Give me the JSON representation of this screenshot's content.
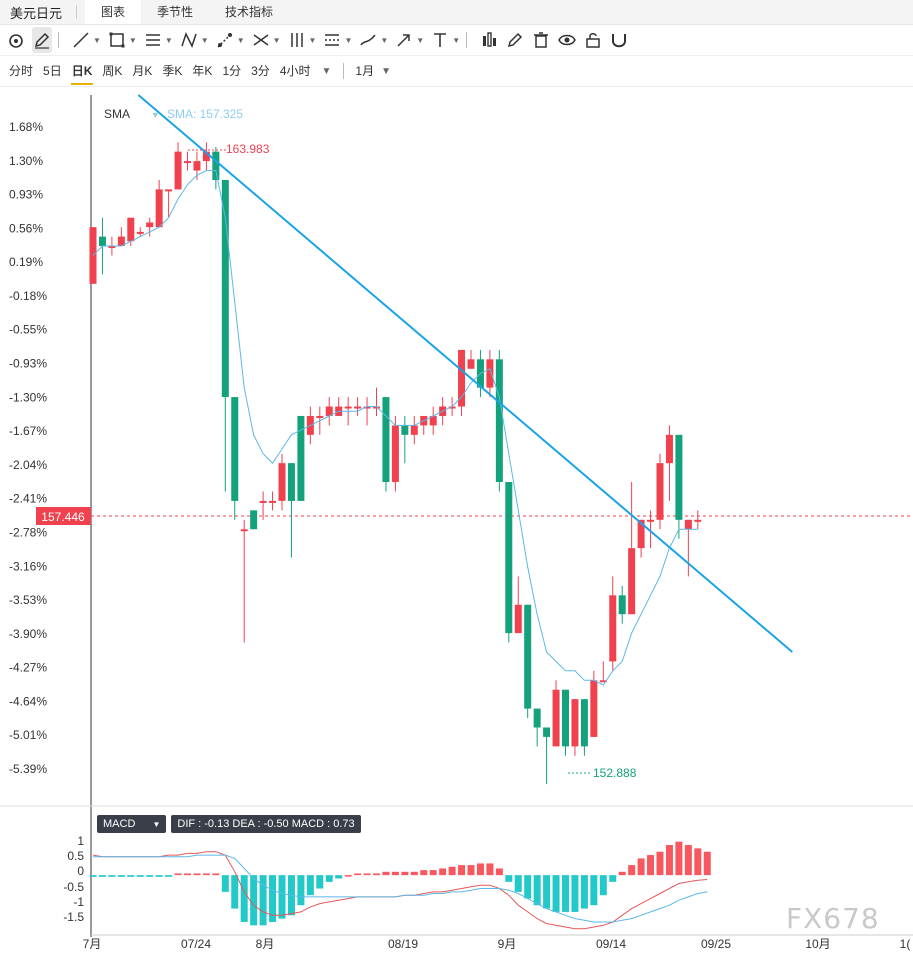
{
  "header": {
    "symbol": "美元日元",
    "tabs": [
      {
        "label": "图表",
        "active": true
      },
      {
        "label": "季节性",
        "active": false
      },
      {
        "label": "技术指标",
        "active": false
      }
    ]
  },
  "toolbar": {
    "icons": [
      "magnet-icon",
      "pencil-icon",
      "line-icon",
      "rectangle-icon",
      "parallel-lines-icon",
      "pattern-icon",
      "ruler-icon",
      "fork-icon",
      "pitchfork-icon",
      "fib-icon",
      "brush-icon",
      "arrow-icon",
      "text-icon",
      "bar-chart-icon",
      "edit-icon",
      "trash-icon",
      "eye-icon",
      "lock-icon",
      "magnet-u-icon"
    ]
  },
  "periods": {
    "items": [
      "分时",
      "5日",
      "日K",
      "周K",
      "月K",
      "季K",
      "年K",
      "1分",
      "3分",
      "4小时"
    ],
    "active": "日K",
    "range": "1月"
  },
  "colors": {
    "up": "#f0414f",
    "down": "#13a27b",
    "sma": "#5bb8e8",
    "trend": "#1aa4e8",
    "macd_pos": "#f7575e",
    "macd_neg": "#23c8c8",
    "dea": "#5bb8e8",
    "dif": "#e55858"
  },
  "legend": {
    "sma_label": "SMA",
    "sma_value": "SMA: 157.325"
  },
  "chart_data": {
    "type": "candlestick",
    "y_axis_labels": [
      "1.68%",
      "1.30%",
      "0.93%",
      "0.56%",
      "0.19%",
      "-0.18%",
      "-0.55%",
      "-0.93%",
      "-1.30%",
      "-1.67%",
      "-2.04%",
      "-2.41%",
      "-2.78%",
      "-3.16%",
      "-3.53%",
      "-3.90%",
      "-4.27%",
      "-4.64%",
      "-5.01%",
      "-5.39%"
    ],
    "ylim_pct": [
      -5.6,
      1.9
    ],
    "x_axis_labels": [
      "7月",
      "07/24",
      "8月",
      "08/19",
      "9月",
      "09/14",
      "09/25",
      "10月",
      "1("
    ],
    "current_price": "157.446",
    "current_price_pct": -2.6,
    "high_marker": {
      "label": "163.983",
      "pct": 1.4
    },
    "low_marker": {
      "label": "152.888",
      "pct": -5.4
    },
    "candles": [
      {
        "o": -0.1,
        "c": 0.5,
        "h": 0.5,
        "l": -0.1
      },
      {
        "o": 0.4,
        "c": 0.3,
        "h": 0.6,
        "l": 0.0
      },
      {
        "o": 0.3,
        "c": 0.3,
        "h": 0.4,
        "l": 0.2
      },
      {
        "o": 0.3,
        "c": 0.4,
        "h": 0.5,
        "l": 0.3
      },
      {
        "o": 0.35,
        "c": 0.6,
        "h": 0.6,
        "l": 0.3
      },
      {
        "o": 0.45,
        "c": 0.45,
        "h": 0.5,
        "l": 0.4
      },
      {
        "o": 0.5,
        "c": 0.55,
        "h": 0.6,
        "l": 0.4
      },
      {
        "o": 0.5,
        "c": 0.9,
        "h": 1.0,
        "l": 0.5
      },
      {
        "o": 0.9,
        "c": 0.9,
        "h": 0.9,
        "l": 0.6
      },
      {
        "o": 0.9,
        "c": 1.3,
        "h": 1.4,
        "l": 0.9
      },
      {
        "o": 1.2,
        "c": 1.2,
        "h": 1.3,
        "l": 1.1
      },
      {
        "o": 1.1,
        "c": 1.2,
        "h": 1.3,
        "l": 1.0
      },
      {
        "o": 1.2,
        "c": 1.3,
        "h": 1.4,
        "l": 1.1
      },
      {
        "o": 1.3,
        "c": 1.0,
        "h": 1.35,
        "l": 0.9
      },
      {
        "o": 1.0,
        "c": -1.3,
        "h": 1.0,
        "l": -2.3
      },
      {
        "o": -1.3,
        "c": -2.4,
        "h": -1.3,
        "l": -2.6
      },
      {
        "o": -2.7,
        "c": -2.7,
        "h": -2.6,
        "l": -3.9
      },
      {
        "o": -2.5,
        "c": -2.7,
        "h": -2.5,
        "l": -2.7
      },
      {
        "o": -2.4,
        "c": -2.4,
        "h": -2.3,
        "l": -2.6
      },
      {
        "o": -2.4,
        "c": -2.4,
        "h": -2.3,
        "l": -2.5
      },
      {
        "o": -2.4,
        "c": -2.0,
        "h": -1.9,
        "l": -2.5
      },
      {
        "o": -2.0,
        "c": -2.4,
        "h": -2.0,
        "l": -3.0
      },
      {
        "o": -1.5,
        "c": -2.4,
        "h": -1.5,
        "l": -2.4
      },
      {
        "o": -1.7,
        "c": -1.5,
        "h": -1.4,
        "l": -1.8
      },
      {
        "o": -1.5,
        "c": -1.5,
        "h": -1.4,
        "l": -1.7
      },
      {
        "o": -1.5,
        "c": -1.4,
        "h": -1.3,
        "l": -1.6
      },
      {
        "o": -1.5,
        "c": -1.4,
        "h": -1.3,
        "l": -1.5
      },
      {
        "o": -1.4,
        "c": -1.4,
        "h": -1.3,
        "l": -1.6
      },
      {
        "o": -1.4,
        "c": -1.4,
        "h": -1.3,
        "l": -1.5
      },
      {
        "o": -1.4,
        "c": -1.4,
        "h": -1.3,
        "l": -1.6
      },
      {
        "o": -1.4,
        "c": -1.4,
        "h": -1.2,
        "l": -1.5
      },
      {
        "o": -1.3,
        "c": -2.2,
        "h": -1.3,
        "l": -2.3
      },
      {
        "o": -2.2,
        "c": -1.6,
        "h": -1.5,
        "l": -2.3
      },
      {
        "o": -1.6,
        "c": -1.7,
        "h": -1.5,
        "l": -2.0
      },
      {
        "o": -1.7,
        "c": -1.6,
        "h": -1.5,
        "l": -1.8
      },
      {
        "o": -1.6,
        "c": -1.5,
        "h": -1.5,
        "l": -1.7
      },
      {
        "o": -1.6,
        "c": -1.5,
        "h": -1.4,
        "l": -1.7
      },
      {
        "o": -1.5,
        "c": -1.4,
        "h": -1.3,
        "l": -1.6
      },
      {
        "o": -1.4,
        "c": -1.4,
        "h": -1.3,
        "l": -1.5
      },
      {
        "o": -1.4,
        "c": -0.8,
        "h": -0.8,
        "l": -1.5
      },
      {
        "o": -1.0,
        "c": -0.9,
        "h": -0.8,
        "l": -1.0
      },
      {
        "o": -0.9,
        "c": -1.2,
        "h": -0.8,
        "l": -1.3
      },
      {
        "o": -1.2,
        "c": -0.9,
        "h": -0.8,
        "l": -1.3
      },
      {
        "o": -0.9,
        "c": -2.2,
        "h": -0.8,
        "l": -2.3
      },
      {
        "o": -2.2,
        "c": -3.8,
        "h": -2.2,
        "l": -3.9
      },
      {
        "o": -3.8,
        "c": -3.5,
        "h": -3.2,
        "l": -3.8
      },
      {
        "o": -3.5,
        "c": -4.6,
        "h": -3.5,
        "l": -4.7
      },
      {
        "o": -4.6,
        "c": -4.8,
        "h": -4.6,
        "l": -5.0
      },
      {
        "o": -4.8,
        "c": -4.9,
        "h": -4.8,
        "l": -5.4
      },
      {
        "o": -5.0,
        "c": -4.4,
        "h": -4.3,
        "l": -5.0
      },
      {
        "o": -4.4,
        "c": -5.0,
        "h": -4.4,
        "l": -5.1
      },
      {
        "o": -5.0,
        "c": -4.5,
        "h": -4.5,
        "l": -5.1
      },
      {
        "o": -4.5,
        "c": -5.0,
        "h": -4.5,
        "l": -5.1
      },
      {
        "o": -4.9,
        "c": -4.3,
        "h": -4.2,
        "l": -4.9
      },
      {
        "o": -4.3,
        "c": -4.3,
        "h": -4.1,
        "l": -4.3
      },
      {
        "o": -4.1,
        "c": -3.4,
        "h": -3.2,
        "l": -4.2
      },
      {
        "o": -3.4,
        "c": -3.6,
        "h": -3.3,
        "l": -3.7
      },
      {
        "o": -3.6,
        "c": -2.9,
        "h": -2.2,
        "l": -3.6
      },
      {
        "o": -2.9,
        "c": -2.6,
        "h": -2.6,
        "l": -3.0
      },
      {
        "o": -2.6,
        "c": -2.6,
        "h": -2.5,
        "l": -2.9
      },
      {
        "o": -2.6,
        "c": -2.0,
        "h": -1.9,
        "l": -2.7
      },
      {
        "o": -2.0,
        "c": -1.7,
        "h": -1.6,
        "l": -2.4
      },
      {
        "o": -1.7,
        "c": -2.6,
        "h": -1.7,
        "l": -2.8
      },
      {
        "o": -2.7,
        "c": -2.6,
        "h": -2.6,
        "l": -3.2
      },
      {
        "o": -2.6,
        "c": -2.6,
        "h": -2.5,
        "l": -2.7
      }
    ],
    "sma": [
      0.2,
      0.3,
      0.3,
      0.3,
      0.35,
      0.4,
      0.45,
      0.5,
      0.6,
      0.8,
      0.95,
      1.05,
      1.1,
      1.1,
      0.6,
      -0.3,
      -1.2,
      -1.7,
      -1.9,
      -2.0,
      -1.85,
      -1.7,
      -1.65,
      -1.6,
      -1.55,
      -1.5,
      -1.45,
      -1.45,
      -1.45,
      -1.4,
      -1.4,
      -1.5,
      -1.6,
      -1.6,
      -1.6,
      -1.55,
      -1.5,
      -1.45,
      -1.4,
      -1.3,
      -1.15,
      -1.05,
      -1.0,
      -1.3,
      -1.9,
      -2.5,
      -3.1,
      -3.6,
      -4.0,
      -4.1,
      -4.2,
      -4.2,
      -4.3,
      -4.3,
      -4.35,
      -4.2,
      -4.1,
      -3.8,
      -3.6,
      -3.4,
      -3.2,
      -2.9,
      -2.7,
      -2.7,
      -2.7
    ],
    "trendline": [
      {
        "i": 4.8,
        "pct": 1.9
      },
      {
        "i": 74,
        "pct": -4.0
      }
    ],
    "macd": {
      "legend": "DIF : -0.13   DEA : -0.50   MACD : 0.73",
      "y_labels": [
        "1",
        "0.5",
        "0",
        "-0.5",
        "-1",
        "-1.5"
      ],
      "ylim": [
        -1.7,
        1.2
      ],
      "hist": [
        -0.05,
        -0.05,
        -0.05,
        -0.05,
        -0.05,
        -0.05,
        -0.05,
        -0.05,
        -0.05,
        0.05,
        0.05,
        0.05,
        0.05,
        0.05,
        -0.5,
        -1.0,
        -1.4,
        -1.5,
        -1.5,
        -1.4,
        -1.3,
        -1.2,
        -0.9,
        -0.6,
        -0.4,
        -0.2,
        -0.1,
        0.0,
        0.05,
        0.05,
        0.05,
        0.1,
        0.1,
        0.1,
        0.1,
        0.15,
        0.15,
        0.2,
        0.25,
        0.3,
        0.3,
        0.35,
        0.35,
        0.2,
        -0.2,
        -0.5,
        -0.7,
        -0.9,
        -1.0,
        -1.1,
        -1.1,
        -1.1,
        -1.0,
        -0.9,
        -0.6,
        -0.2,
        0.1,
        0.3,
        0.5,
        0.6,
        0.7,
        0.9,
        1.0,
        0.9,
        0.8,
        0.7
      ],
      "dif": [
        0.6,
        0.55,
        0.55,
        0.55,
        0.55,
        0.55,
        0.55,
        0.55,
        0.6,
        0.6,
        0.65,
        0.65,
        0.7,
        0.7,
        0.6,
        0.1,
        -0.5,
        -0.9,
        -1.1,
        -1.2,
        -1.2,
        -1.15,
        -1.1,
        -0.95,
        -0.85,
        -0.8,
        -0.75,
        -0.7,
        -0.65,
        -0.65,
        -0.65,
        -0.65,
        -0.65,
        -0.6,
        -0.6,
        -0.55,
        -0.5,
        -0.5,
        -0.45,
        -0.4,
        -0.35,
        -0.3,
        -0.3,
        -0.4,
        -0.6,
        -0.9,
        -1.1,
        -1.3,
        -1.45,
        -1.5,
        -1.55,
        -1.6,
        -1.6,
        -1.55,
        -1.5,
        -1.4,
        -1.2,
        -1.0,
        -0.85,
        -0.7,
        -0.55,
        -0.4,
        -0.25,
        -0.2,
        -0.15,
        -0.13
      ],
      "dea": [
        0.55,
        0.55,
        0.55,
        0.55,
        0.55,
        0.55,
        0.55,
        0.55,
        0.55,
        0.55,
        0.55,
        0.6,
        0.6,
        0.6,
        0.6,
        0.5,
        0.2,
        -0.1,
        -0.3,
        -0.45,
        -0.55,
        -0.6,
        -0.65,
        -0.65,
        -0.65,
        -0.65,
        -0.65,
        -0.65,
        -0.65,
        -0.65,
        -0.65,
        -0.65,
        -0.65,
        -0.6,
        -0.6,
        -0.6,
        -0.55,
        -0.55,
        -0.5,
        -0.5,
        -0.45,
        -0.4,
        -0.4,
        -0.4,
        -0.45,
        -0.55,
        -0.7,
        -0.85,
        -1.0,
        -1.1,
        -1.2,
        -1.3,
        -1.35,
        -1.4,
        -1.4,
        -1.4,
        -1.35,
        -1.3,
        -1.2,
        -1.1,
        -1.0,
        -0.9,
        -0.75,
        -0.65,
        -0.55,
        -0.5
      ]
    }
  },
  "watermark": "FX678"
}
